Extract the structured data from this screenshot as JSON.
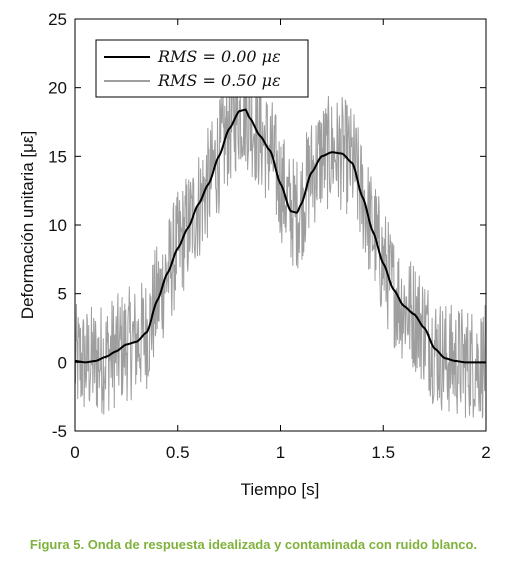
{
  "chart_data": {
    "type": "line",
    "xlabel": "Tiempo [s]",
    "ylabel": "Deformación unitaria [με]",
    "xlim": [
      0,
      2
    ],
    "ylim": [
      -5,
      25
    ],
    "xticks": [
      0,
      0.5,
      1,
      1.5,
      2
    ],
    "xtick_labels": [
      "0",
      "0.5",
      "1",
      "1.5",
      "2"
    ],
    "yticks": [
      -5,
      0,
      5,
      10,
      15,
      20,
      25
    ],
    "ytick_labels": [
      "-5",
      "0",
      "5",
      "10",
      "15",
      "20",
      "25"
    ],
    "grid": false,
    "legend_position": "top-left",
    "series": [
      {
        "name": "RMS = 0.00 με",
        "color": "#000000",
        "x": [
          0,
          0.05,
          0.1,
          0.15,
          0.2,
          0.25,
          0.3,
          0.35,
          0.4,
          0.45,
          0.5,
          0.55,
          0.6,
          0.65,
          0.7,
          0.75,
          0.8,
          0.83,
          0.85,
          0.9,
          0.95,
          1.0,
          1.05,
          1.08,
          1.1,
          1.15,
          1.2,
          1.25,
          1.3,
          1.35,
          1.4,
          1.45,
          1.5,
          1.55,
          1.6,
          1.65,
          1.7,
          1.75,
          1.8,
          1.85,
          1.9,
          1.95,
          2.0
        ],
        "y": [
          0.1,
          0.0,
          0.1,
          0.4,
          0.8,
          1.3,
          1.5,
          2.2,
          4.5,
          6.5,
          8.3,
          9.8,
          11.5,
          13.0,
          15.0,
          17.0,
          18.3,
          18.4,
          17.8,
          16.5,
          15.4,
          13.0,
          11.0,
          10.9,
          11.5,
          13.8,
          15.0,
          15.3,
          15.2,
          14.5,
          12.0,
          9.5,
          7.2,
          5.3,
          4.1,
          3.5,
          2.5,
          1.0,
          0.3,
          0.1,
          0.0,
          0.0,
          0.0
        ]
      },
      {
        "name": "RMS = 0.50 με",
        "color": "#9e9e9e",
        "noise_rms": 0.5
      }
    ]
  },
  "caption": "Figura 5. Onda de respuesta idealizada y contaminada con ruido blanco."
}
